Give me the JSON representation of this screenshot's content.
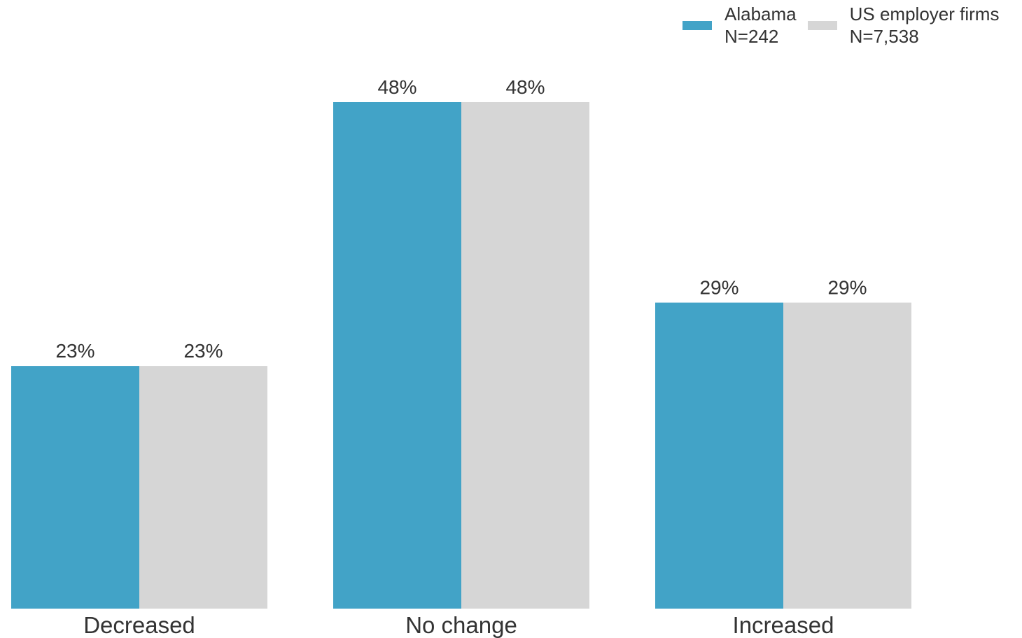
{
  "chart_data": {
    "type": "bar",
    "categories": [
      "Decreased",
      "No change",
      "Increased"
    ],
    "series": [
      {
        "name": "Alabama",
        "name_line2": "N=242",
        "color": "#42a3c7",
        "values": [
          23,
          48,
          29
        ],
        "labels": [
          "23%",
          "48%",
          "29%"
        ]
      },
      {
        "name": "US employer firms",
        "name_line2": "N=7,538",
        "color": "#d6d6d6",
        "values": [
          23,
          48,
          29
        ],
        "labels": [
          "23%",
          "48%",
          "29%"
        ]
      }
    ],
    "ylim": [
      0,
      48
    ],
    "grid": false,
    "legend_position": "top-right"
  }
}
